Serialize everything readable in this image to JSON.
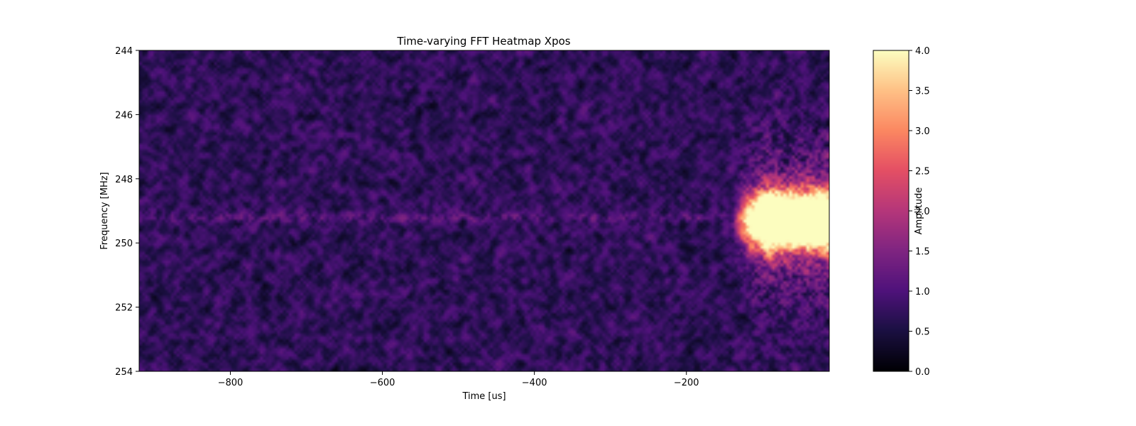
{
  "chart_data": {
    "type": "heatmap",
    "title": "Time-varying FFT Heatmap Xpos",
    "xlabel": "Time [us]",
    "ylabel": "Frequency [MHz]",
    "xlim": [
      -920,
      -12
    ],
    "ylim": [
      254,
      244
    ],
    "y_inverted": true,
    "xticks": [
      -800,
      -600,
      -400,
      -200
    ],
    "xtick_labels": [
      "−800",
      "−600",
      "−400",
      "−200"
    ],
    "yticks": [
      244,
      246,
      248,
      250,
      252,
      254
    ],
    "ytick_labels": [
      "244",
      "246",
      "248",
      "250",
      "252",
      "254"
    ],
    "colormap": "magma",
    "colorbar": {
      "label": "Amplitude",
      "range": [
        0.0,
        4.0
      ],
      "ticks": [
        0.0,
        0.5,
        1.0,
        1.5,
        2.0,
        2.5,
        3.0,
        3.5,
        4.0
      ],
      "tick_labels": [
        "0.0",
        "0.5",
        "1.0",
        "1.5",
        "2.0",
        "2.5",
        "3.0",
        "3.5",
        "4.0"
      ]
    },
    "features": {
      "background_amplitude_mean": 0.7,
      "background_amplitude_max": 1.5,
      "carrier_line_frequency": 249.2,
      "carrier_line_amplitude": 1.2,
      "burst_center_frequency": 249.3,
      "burst_onset_time": -140,
      "burst_peak_time_range": [
        -95,
        -12
      ],
      "burst_peak_frequency_range": [
        248.2,
        250.2
      ],
      "burst_peak_amplitude": 4.0,
      "burst_sideband_frequency_range": [
        245.5,
        253.0
      ],
      "grid_time_bins": 240,
      "grid_frequency_bins": 110
    },
    "grid": false,
    "legend": "none"
  }
}
